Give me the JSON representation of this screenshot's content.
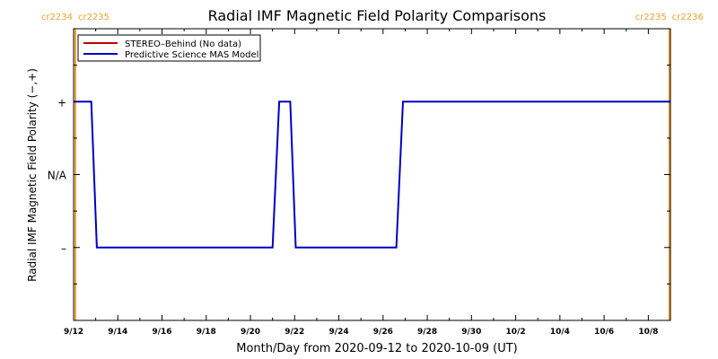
{
  "chart_data": {
    "type": "line",
    "title": "Radial IMF Magnetic Field Polarity Comparisons",
    "xlabel": "Month/Day from 2020-09-12 to 2020-10-09 (UT)",
    "ylabel": "Radial IMF Magnetic Field Polarity (−,+)",
    "x_range_days": [
      0,
      27.0
    ],
    "y_range": [
      -2,
      2
    ],
    "x_ticks": [
      {
        "day": 0,
        "label": "9/12"
      },
      {
        "day": 2,
        "label": "9/14"
      },
      {
        "day": 4,
        "label": "9/16"
      },
      {
        "day": 6,
        "label": "9/18"
      },
      {
        "day": 8,
        "label": "9/20"
      },
      {
        "day": 10,
        "label": "9/22"
      },
      {
        "day": 12,
        "label": "9/24"
      },
      {
        "day": 14,
        "label": "9/26"
      },
      {
        "day": 16,
        "label": "9/28"
      },
      {
        "day": 18,
        "label": "9/30"
      },
      {
        "day": 20,
        "label": "10/2"
      },
      {
        "day": 22,
        "label": "10/4"
      },
      {
        "day": 24,
        "label": "10/6"
      },
      {
        "day": 26,
        "label": "10/8"
      }
    ],
    "y_ticks": [
      {
        "value": 1,
        "label": "+"
      },
      {
        "value": 0,
        "label": "N/A"
      },
      {
        "value": -1,
        "label": "–"
      }
    ],
    "legend": {
      "placement": "top-left",
      "entries": [
        {
          "label": "STEREO–Behind (No data)",
          "color": "#c00000"
        },
        {
          "label": "Predictive Science MAS Model",
          "color": "#0000c0"
        }
      ]
    },
    "series": [
      {
        "name": "Predictive Science MAS Model",
        "color": "#0000c0",
        "points": [
          [
            0.0,
            1
          ],
          [
            0.8,
            1
          ],
          [
            1.05,
            -1
          ],
          [
            9.0,
            -1
          ],
          [
            9.3,
            1
          ],
          [
            9.8,
            1
          ],
          [
            10.05,
            -1
          ],
          [
            14.6,
            -1
          ],
          [
            14.9,
            1
          ],
          [
            27.0,
            1
          ]
        ]
      }
    ],
    "rotation_markers": {
      "color": "#f0a030",
      "lines": [
        {
          "day": 0.08,
          "label_left": "cr2234",
          "label_right": "cr2235"
        },
        {
          "day": 26.95,
          "label_left": "cr2235",
          "label_right": "cr2236"
        }
      ]
    }
  }
}
